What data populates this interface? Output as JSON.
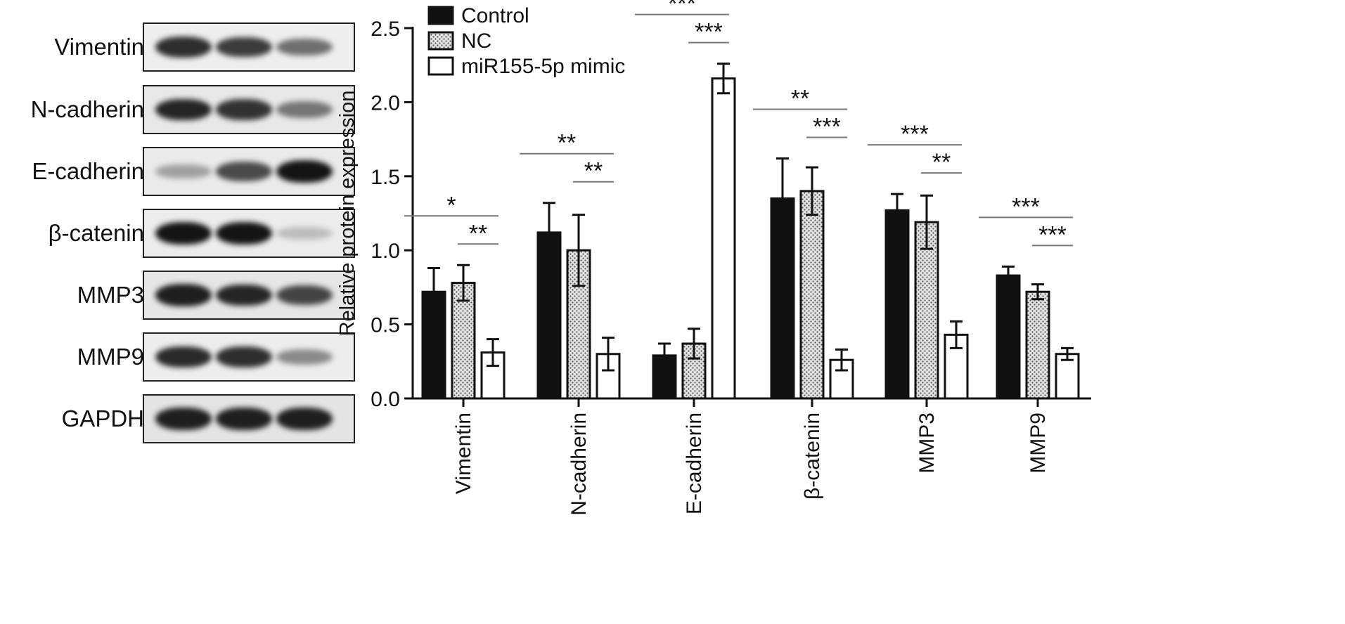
{
  "blot": {
    "rows": [
      {
        "label": "Vimentin",
        "intensity": [
          0.88,
          0.82,
          0.58
        ],
        "background": "#eeeeee"
      },
      {
        "label": "N-cadherin",
        "intensity": [
          0.92,
          0.86,
          0.55
        ],
        "background": "#e8e8e8"
      },
      {
        "label": "E-cadherin",
        "intensity": [
          0.35,
          0.75,
          1.0
        ],
        "background": "#eaeaea"
      },
      {
        "label": "β-catenin",
        "intensity": [
          1.0,
          1.0,
          0.22
        ],
        "background": "#ececec"
      },
      {
        "label": "MMP3",
        "intensity": [
          0.95,
          0.92,
          0.78
        ],
        "background": "#e6e6e6"
      },
      {
        "label": "MMP9",
        "intensity": [
          0.9,
          0.88,
          0.45
        ],
        "background": "#ededed"
      },
      {
        "label": "GAPDH",
        "intensity": [
          0.95,
          0.95,
          0.95
        ],
        "background": "#e4e4e4"
      }
    ]
  },
  "chart_data": {
    "type": "bar",
    "ylabel": "Relative protein expression",
    "ylim": [
      0,
      2.5
    ],
    "yticks": [
      "0.0",
      "0.5",
      "1.0",
      "1.5",
      "2.0",
      "2.5"
    ],
    "categories": [
      "Vimentin",
      "N-cadherin",
      "E-cadherin",
      "β-catenin",
      "MMP3",
      "MMP9"
    ],
    "legend_position": "top-left",
    "series": [
      {
        "name": "Control",
        "fill": "#111111",
        "values": [
          0.72,
          1.12,
          0.29,
          1.35,
          1.27,
          0.83
        ],
        "errors": [
          0.16,
          0.2,
          0.08,
          0.27,
          0.11,
          0.06
        ]
      },
      {
        "name": "NC",
        "fill": "pattern",
        "values": [
          0.78,
          1.0,
          0.37,
          1.4,
          1.19,
          0.72
        ],
        "errors": [
          0.12,
          0.24,
          0.1,
          0.16,
          0.18,
          0.05
        ]
      },
      {
        "name": "miR155-5p mimic",
        "fill": "#ffffff",
        "values": [
          0.31,
          0.3,
          2.16,
          0.26,
          0.43,
          0.3
        ],
        "errors": [
          0.09,
          0.11,
          0.1,
          0.07,
          0.09,
          0.04
        ]
      }
    ],
    "significance": [
      {
        "category": 0,
        "upper": "*",
        "lower": "**"
      },
      {
        "category": 1,
        "upper": "**",
        "lower": "**"
      },
      {
        "category": 2,
        "upper": "***",
        "lower": "***"
      },
      {
        "category": 3,
        "upper": "**",
        "lower": "***"
      },
      {
        "category": 4,
        "upper": "***",
        "lower": "**"
      },
      {
        "category": 5,
        "upper": "***",
        "lower": "***"
      }
    ]
  }
}
